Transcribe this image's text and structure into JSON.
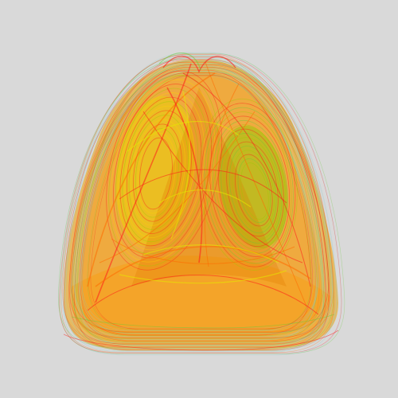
{
  "scene": {
    "background": "#d9d9d9",
    "palette": [
      "#ff1a1a",
      "#ff6a00",
      "#ffae00",
      "#ffd500",
      "#e6e600",
      "#9ccc00",
      "#66cc33",
      "#88cccc",
      "#aacccc"
    ]
  }
}
